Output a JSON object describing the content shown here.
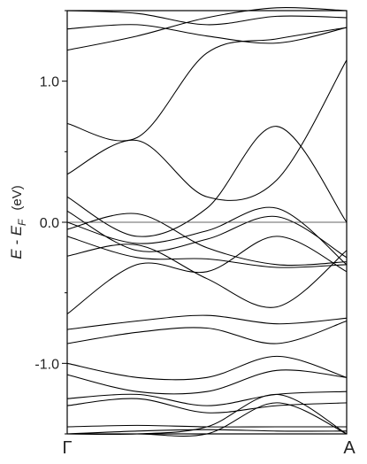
{
  "chart_data": {
    "type": "line",
    "xlabel_start": "Γ",
    "xlabel_end": "A",
    "ylabel_main": "E - E",
    "ylabel_sub": "F",
    "ylabel_unit": "(eV)",
    "ylim": [
      -1.5,
      1.5
    ],
    "yticks": [
      {
        "value": 1.0,
        "label": "1.0"
      },
      {
        "value": 0.0,
        "label": "0.0"
      },
      {
        "value": -1.0,
        "label": "-1.0"
      }
    ],
    "reference_line": 0.0,
    "x": [
      0.0,
      0.25,
      0.5,
      0.75,
      1.0
    ],
    "series": [
      {
        "values": [
          1.22,
          1.32,
          1.45,
          1.52,
          1.5
        ]
      },
      {
        "values": [
          1.37,
          1.4,
          1.32,
          1.27,
          1.38
        ]
      },
      {
        "values": [
          1.5,
          1.48,
          1.4,
          1.46,
          1.45
        ]
      },
      {
        "values": [
          0.7,
          0.6,
          1.2,
          1.3,
          1.38
        ]
      },
      {
        "values": [
          0.34,
          0.58,
          0.18,
          0.3,
          1.15
        ]
      },
      {
        "values": [
          0.18,
          -0.1,
          0.1,
          0.68,
          0.0
        ]
      },
      {
        "values": [
          0.08,
          -0.2,
          -0.12,
          0.04,
          -0.25
        ]
      },
      {
        "values": [
          0.0,
          -0.15,
          -0.06,
          0.1,
          -0.3
        ]
      },
      {
        "values": [
          -0.05,
          0.06,
          -0.18,
          -0.3,
          -0.28
        ]
      },
      {
        "values": [
          -0.1,
          -0.25,
          -0.26,
          -0.32,
          -0.3
        ]
      },
      {
        "values": [
          -0.24,
          -0.16,
          -0.4,
          -0.6,
          -0.2
        ]
      },
      {
        "values": [
          -0.65,
          -0.3,
          -0.35,
          -0.1,
          -0.35
        ]
      },
      {
        "values": [
          -0.76,
          -0.7,
          -0.66,
          -0.72,
          -0.68
        ]
      },
      {
        "values": [
          -0.86,
          -0.78,
          -0.75,
          -0.86,
          -0.7
        ]
      },
      {
        "values": [
          -1.0,
          -1.1,
          -1.1,
          -0.95,
          -1.1
        ]
      },
      {
        "values": [
          -1.08,
          -1.2,
          -1.2,
          -1.05,
          -1.1
        ]
      },
      {
        "values": [
          -1.25,
          -1.22,
          -1.3,
          -1.22,
          -1.2
        ]
      },
      {
        "values": [
          -1.3,
          -1.25,
          -1.35,
          -1.3,
          -1.28
        ]
      },
      {
        "values": [
          -1.45,
          -1.44,
          -1.45,
          -1.45,
          -1.45
        ]
      },
      {
        "values": [
          -1.5,
          -1.48,
          -1.47,
          -1.48,
          -1.48
        ]
      },
      {
        "values": [
          -1.5,
          -1.5,
          -1.45,
          -1.22,
          -1.5
        ]
      },
      {
        "values": [
          -1.5,
          -1.5,
          -1.5,
          -1.28,
          -1.5
        ]
      }
    ]
  }
}
